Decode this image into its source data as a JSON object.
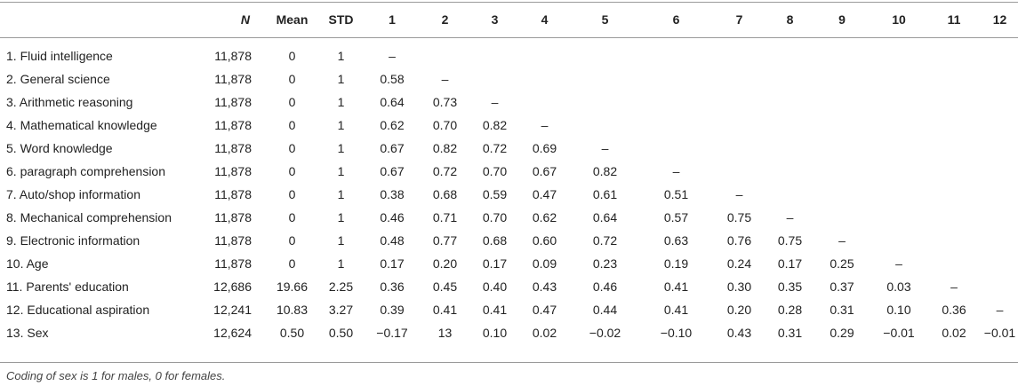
{
  "table": {
    "headers": [
      "N",
      "Mean",
      "STD",
      "1",
      "2",
      "3",
      "4",
      "5",
      "6",
      "7",
      "8",
      "9",
      "10",
      "11",
      "12"
    ],
    "rows": [
      {
        "label": "1. Fluid intelligence",
        "n": "11,878",
        "mean": "0",
        "std": "1",
        "corr": [
          "–",
          "",
          "",
          "",
          "",
          "",
          "",
          "",
          "",
          "",
          "",
          ""
        ]
      },
      {
        "label": "2. General science",
        "n": "11,878",
        "mean": "0",
        "std": "1",
        "corr": [
          "0.58",
          "–",
          "",
          "",
          "",
          "",
          "",
          "",
          "",
          "",
          "",
          ""
        ]
      },
      {
        "label": "3. Arithmetic reasoning",
        "n": "11,878",
        "mean": "0",
        "std": "1",
        "corr": [
          "0.64",
          "0.73",
          "–",
          "",
          "",
          "",
          "",
          "",
          "",
          "",
          "",
          ""
        ]
      },
      {
        "label": "4. Mathematical knowledge",
        "n": "11,878",
        "mean": "0",
        "std": "1",
        "corr": [
          "0.62",
          "0.70",
          "0.82",
          "–",
          "",
          "",
          "",
          "",
          "",
          "",
          "",
          ""
        ]
      },
      {
        "label": "5. Word knowledge",
        "n": "11,878",
        "mean": "0",
        "std": "1",
        "corr": [
          "0.67",
          "0.82",
          "0.72",
          "0.69",
          "–",
          "",
          "",
          "",
          "",
          "",
          "",
          ""
        ]
      },
      {
        "label": "6. paragraph comprehension",
        "n": "11,878",
        "mean": "0",
        "std": "1",
        "corr": [
          "0.67",
          "0.72",
          "0.70",
          "0.67",
          "0.82",
          "–",
          "",
          "",
          "",
          "",
          "",
          ""
        ]
      },
      {
        "label": "7. Auto/shop information",
        "n": "11,878",
        "mean": "0",
        "std": "1",
        "corr": [
          "0.38",
          "0.68",
          "0.59",
          "0.47",
          "0.61",
          "0.51",
          "–",
          "",
          "",
          "",
          "",
          ""
        ]
      },
      {
        "label": "8. Mechanical comprehension",
        "n": "11,878",
        "mean": "0",
        "std": "1",
        "corr": [
          "0.46",
          "0.71",
          "0.70",
          "0.62",
          "0.64",
          "0.57",
          "0.75",
          "–",
          "",
          "",
          "",
          ""
        ]
      },
      {
        "label": "9. Electronic information",
        "n": "11,878",
        "mean": "0",
        "std": "1",
        "corr": [
          "0.48",
          "0.77",
          "0.68",
          "0.60",
          "0.72",
          "0.63",
          "0.76",
          "0.75",
          "–",
          "",
          "",
          ""
        ]
      },
      {
        "label": "10. Age",
        "n": "11,878",
        "mean": "0",
        "std": "1",
        "corr": [
          "0.17",
          "0.20",
          "0.17",
          "0.09",
          "0.23",
          "0.19",
          "0.24",
          "0.17",
          "0.25",
          "–",
          "",
          ""
        ]
      },
      {
        "label": "11. Parents' education",
        "n": "12,686",
        "mean": "19.66",
        "std": "2.25",
        "corr": [
          "0.36",
          "0.45",
          "0.40",
          "0.43",
          "0.46",
          "0.41",
          "0.30",
          "0.35",
          "0.37",
          "0.03",
          "–",
          ""
        ]
      },
      {
        "label": "12. Educational aspiration",
        "n": "12,241",
        "mean": "10.83",
        "std": "3.27",
        "corr": [
          "0.39",
          "0.41",
          "0.41",
          "0.47",
          "0.44",
          "0.41",
          "0.20",
          "0.28",
          "0.31",
          "0.10",
          "0.36",
          "–"
        ]
      },
      {
        "label": "13. Sex",
        "n": "12,624",
        "mean": "0.50",
        "std": "0.50",
        "corr": [
          "−0.17",
          "13",
          "0.10",
          "0.02",
          "−0.02",
          "−0.10",
          "0.43",
          "0.31",
          "0.29",
          "−0.01",
          "0.02",
          "−0.01"
        ]
      }
    ],
    "note": "Coding of sex is 1 for males, 0 for females."
  }
}
